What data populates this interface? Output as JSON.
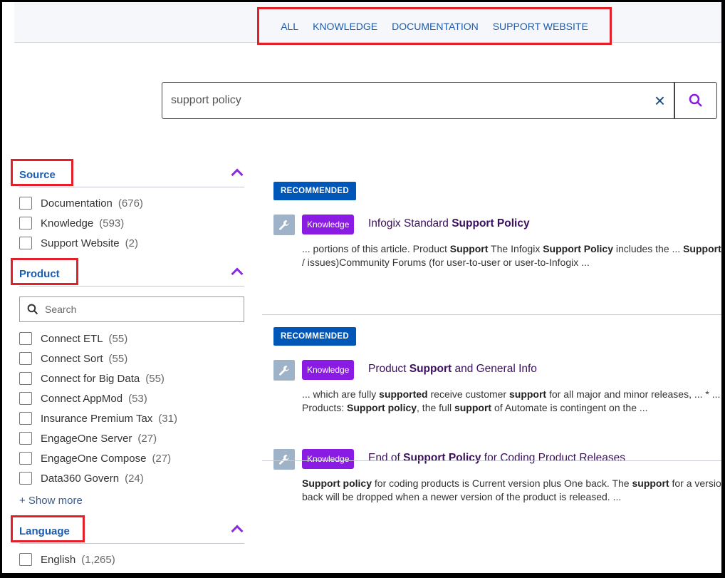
{
  "tabs": [
    "ALL",
    "KNOWLEDGE",
    "DOCUMENTATION",
    "SUPPORT WEBSITE"
  ],
  "search": {
    "value": "support policy",
    "clear_icon": "×"
  },
  "filters": {
    "source": {
      "title": "Source",
      "options": [
        {
          "label": "Documentation",
          "count": "(676)"
        },
        {
          "label": "Knowledge",
          "count": "(593)"
        },
        {
          "label": "Support Website",
          "count": "(2)"
        }
      ]
    },
    "product": {
      "title": "Product",
      "search_placeholder": "Search",
      "options": [
        {
          "label": "Connect ETL",
          "count": "(55)"
        },
        {
          "label": "Connect Sort",
          "count": "(55)"
        },
        {
          "label": "Connect for Big Data",
          "count": "(55)"
        },
        {
          "label": "Connect AppMod",
          "count": "(53)"
        },
        {
          "label": "Insurance Premium Tax",
          "count": "(31)"
        },
        {
          "label": "EngageOne Server",
          "count": "(27)"
        },
        {
          "label": "EngageOne Compose",
          "count": "(27)"
        },
        {
          "label": "Data360 Govern",
          "count": "(24)"
        }
      ],
      "show_more": "+ Show more"
    },
    "language": {
      "title": "Language",
      "options": [
        {
          "label": "English",
          "count": "(1,265)"
        }
      ]
    }
  },
  "results": [
    {
      "recommended": "RECOMMENDED",
      "tag": "Knowledge",
      "title": [
        {
          "t": "Infogix Standard "
        },
        {
          "t": "Support Policy",
          "b": true
        }
      ],
      "snippet": [
        [
          {
            "t": "... portions of this article. Product "
          },
          {
            "t": "Support",
            "b": true
          },
          {
            "t": " The Infogix "
          },
          {
            "t": "Support Policy",
            "b": true
          },
          {
            "t": " includes the ... "
          },
          {
            "t": "Support",
            "b": true
          }
        ],
        [
          {
            "t": "/ issues)Community Forums (for user-to-user or user-to-Infogix ..."
          }
        ]
      ]
    },
    {
      "recommended": "RECOMMENDED",
      "tag": "Knowledge",
      "title": [
        {
          "t": "Product "
        },
        {
          "t": "Support",
          "b": true
        },
        {
          "t": " and General Info"
        }
      ],
      "snippet": [
        [
          {
            "t": "... which are fully "
          },
          {
            "t": "supported",
            "b": true
          },
          {
            "t": " receive customer "
          },
          {
            "t": "support",
            "b": true
          },
          {
            "t": " for all major and minor releases, ... * ..."
          }
        ],
        [
          {
            "t": "Products: "
          },
          {
            "t": "Support policy",
            "b": true
          },
          {
            "t": ", the full "
          },
          {
            "t": "support",
            "b": true
          },
          {
            "t": " of Automate is contingent on the ..."
          }
        ]
      ]
    },
    {
      "tag": "Knowledge",
      "title": [
        {
          "t": "End of "
        },
        {
          "t": "Support Policy",
          "b": true
        },
        {
          "t": " for Coding Product Releases"
        }
      ],
      "snippet": [
        [
          {
            "t": "Support policy",
            "b": true
          },
          {
            "t": " for coding products is Current version plus One back. The "
          },
          {
            "t": "support",
            "b": true
          },
          {
            "t": " for a version"
          }
        ],
        [
          {
            "t": "back will be dropped when a newer version of the product is released. ..."
          }
        ]
      ]
    }
  ],
  "colors": {
    "accent": "#8a1be2",
    "link": "#1a5cb0",
    "recommended": "#0057b8",
    "highlight_box": "#e3202a"
  }
}
